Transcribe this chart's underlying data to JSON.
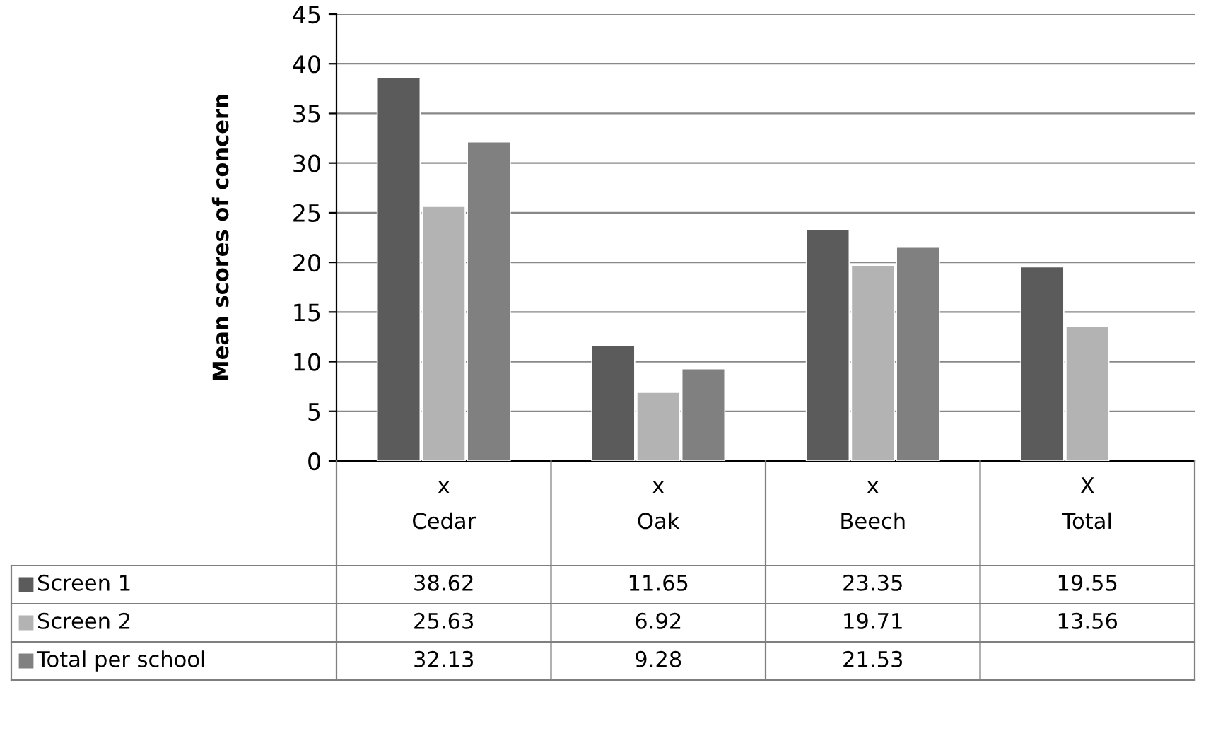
{
  "chart_data": {
    "type": "bar",
    "ylabel": "Mean scores of concern",
    "categories": [
      "x\nCedar",
      "x\nOak",
      "x\nBeech",
      "X\nTotal"
    ],
    "series": [
      {
        "name": "Screen 1",
        "color": "#5b5b5b",
        "values": [
          38.62,
          11.65,
          23.35,
          19.55
        ]
      },
      {
        "name": "Screen 2",
        "color": "#b3b3b3",
        "values": [
          25.63,
          6.92,
          19.71,
          13.56
        ]
      },
      {
        "name": "Total per school",
        "color": "#808080",
        "values": [
          32.13,
          9.28,
          21.53,
          null
        ]
      }
    ],
    "ylim": [
      0,
      45
    ],
    "yticks": [
      0,
      5,
      10,
      15,
      20,
      25,
      30,
      35,
      40,
      45
    ],
    "grid": "y",
    "data_labels": true,
    "legend": "bottom left"
  }
}
